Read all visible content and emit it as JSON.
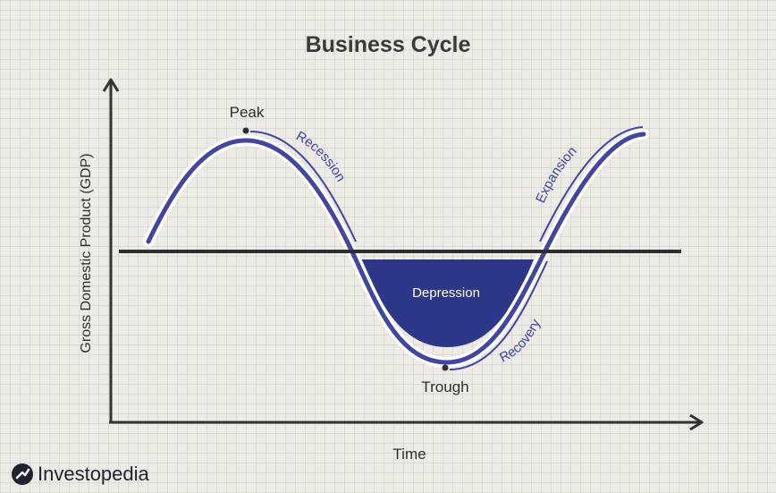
{
  "title": "Business Cycle",
  "axes": {
    "y_label": "Gross Domestic Product (GDP)",
    "x_label": "Time"
  },
  "labels": {
    "peak": "Peak",
    "trough": "Trough",
    "recession": "Recession",
    "expansion": "Expansion",
    "recovery": "Recovery",
    "depression": "Depression"
  },
  "brand": {
    "name": "Investopedia",
    "logo_icon": "investopedia-logo-icon"
  },
  "colors": {
    "curve": "#4045a6",
    "depression_fill": "#2d3787",
    "axis": "#333333",
    "baseline": "#2e2e2e",
    "background": "#ecebe6"
  }
}
